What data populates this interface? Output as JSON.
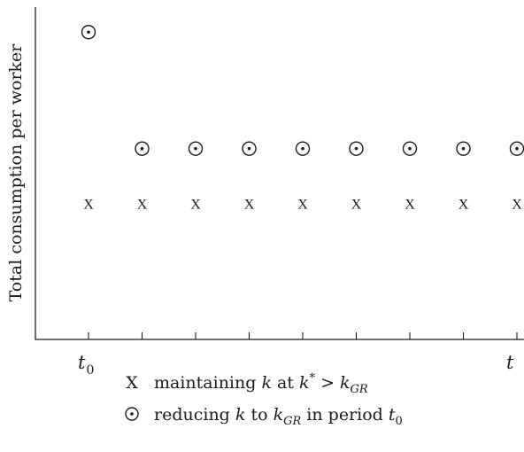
{
  "chart_data": {
    "type": "scatter",
    "ylabel": "Total consumption per worker",
    "x_ticks": [
      {
        "label": "t",
        "sub": "0"
      },
      {
        "label": "",
        "sub": ""
      },
      {
        "label": "",
        "sub": ""
      },
      {
        "label": "",
        "sub": ""
      },
      {
        "label": "",
        "sub": ""
      },
      {
        "label": "",
        "sub": ""
      },
      {
        "label": "",
        "sub": ""
      },
      {
        "label": "",
        "sub": ""
      },
      {
        "label": "t",
        "sub": ""
      }
    ],
    "ylim": [
      0,
      100
    ],
    "series": [
      {
        "marker": "x-glyph",
        "glyph": "X",
        "x": [
          0,
          1,
          2,
          3,
          4,
          5,
          6,
          7,
          8
        ],
        "y": [
          42,
          42,
          42,
          42,
          42,
          42,
          42,
          42,
          42
        ]
      },
      {
        "marker": "circled-dot",
        "x": [
          0,
          1,
          2,
          3,
          4,
          5,
          6,
          7,
          8
        ],
        "y": [
          95,
          59,
          59,
          59,
          59,
          59,
          59,
          59,
          59
        ]
      }
    ],
    "legend": [
      {
        "symbol": "X",
        "parts": [
          {
            "t": "maintaining ",
            "s": "plain"
          },
          {
            "t": "k",
            "s": "i"
          },
          {
            "t": " at ",
            "s": "plain"
          },
          {
            "t": "k",
            "s": "i"
          },
          {
            "t": "*",
            "s": "sup"
          },
          {
            "t": " > ",
            "s": "plain"
          },
          {
            "t": "k",
            "s": "i"
          },
          {
            "t": "GR",
            "s": "sub"
          }
        ]
      },
      {
        "symbol": "circled-dot",
        "parts": [
          {
            "t": "reducing ",
            "s": "plain"
          },
          {
            "t": "k",
            "s": "i"
          },
          {
            "t": " to ",
            "s": "plain"
          },
          {
            "t": "k",
            "s": "i"
          },
          {
            "t": "GR",
            "s": "sub"
          },
          {
            "t": " in period ",
            "s": "plain"
          },
          {
            "t": "t",
            "s": "i"
          },
          {
            "t": "0",
            "s": "subplain"
          }
        ]
      }
    ],
    "legend_placement": "bottom"
  }
}
